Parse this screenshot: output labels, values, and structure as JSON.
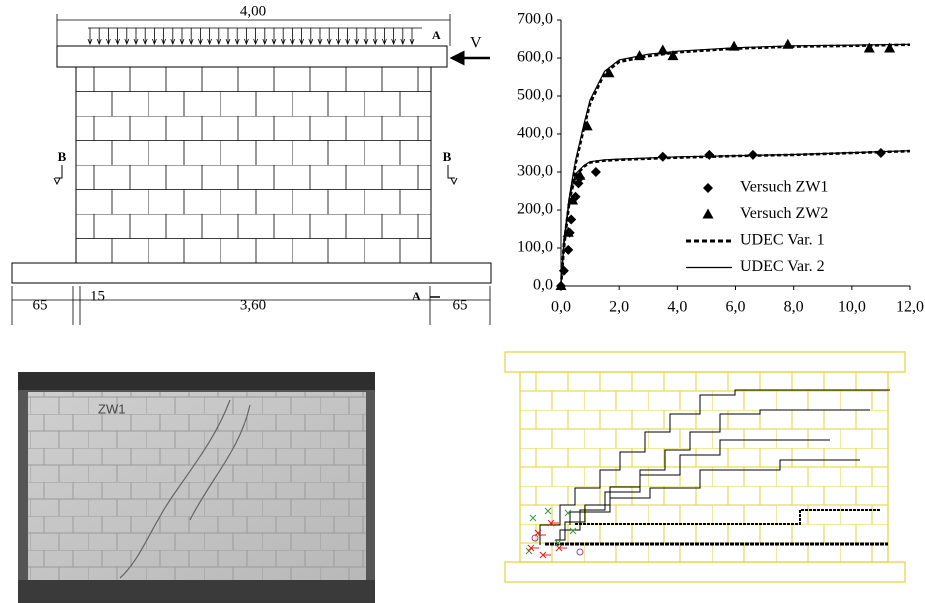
{
  "drawing": {
    "top_dim": "4,00",
    "section_a_top": "A",
    "load": "V",
    "section_b_left": "B",
    "section_b_right": "B",
    "dim_left": "65",
    "dim_joint": "15",
    "dim_middle": "3,60",
    "section_a_bottom": "A",
    "dim_right": "65"
  },
  "chart_data": {
    "type": "line",
    "xlim": [
      0,
      12
    ],
    "ylim": [
      0,
      700
    ],
    "xticks": [
      {
        "value": 0,
        "label": "0,0"
      },
      {
        "value": 2,
        "label": "2,0"
      },
      {
        "value": 4,
        "label": "4,0"
      },
      {
        "value": 6,
        "label": "6,0"
      },
      {
        "value": 8,
        "label": "8,0"
      },
      {
        "value": 10,
        "label": "10,0"
      },
      {
        "value": 12,
        "label": "12,0"
      }
    ],
    "yticks": [
      {
        "value": 0,
        "label": "0,0"
      },
      {
        "value": 100,
        "label": "100,0"
      },
      {
        "value": 200,
        "label": "200,0"
      },
      {
        "value": 300,
        "label": "300,0"
      },
      {
        "value": 400,
        "label": "400,0"
      },
      {
        "value": 500,
        "label": "500,0"
      },
      {
        "value": 600,
        "label": "600,0"
      },
      {
        "value": 700,
        "label": "700,0"
      }
    ],
    "legend": "lower right",
    "series": [
      {
        "name": "Versuch ZW1",
        "color": "#000000",
        "marker": "diamond",
        "line": "none",
        "x": [
          0,
          0.1,
          0.25,
          0.3,
          0.35,
          0.5,
          0.6,
          0.65,
          1.2,
          3.5,
          5.1,
          6.6,
          11
        ],
        "values": [
          0,
          40,
          95,
          140,
          175,
          235,
          270,
          285,
          300,
          340,
          345,
          345,
          350
        ]
      },
      {
        "name": "Versuch ZW2",
        "color": "#000000",
        "marker": "triangle",
        "line": "none",
        "x": [
          0,
          0.25,
          0.4,
          0.65,
          0.9,
          1.65,
          2.7,
          3.5,
          3.85,
          5.95,
          7.8,
          10.6,
          11.3
        ],
        "values": [
          0,
          140,
          225,
          290,
          420,
          560,
          605,
          620,
          605,
          630,
          635,
          625,
          625
        ]
      },
      {
        "name": "UDEC Var. 1",
        "color": "#000000",
        "marker": "none",
        "line": "dashed",
        "x": [
          0,
          0.1,
          0.3,
          0.5,
          0.8,
          1.0,
          1.5,
          2,
          3,
          4,
          6,
          8,
          10,
          12,
          null,
          0,
          0.1,
          0.3,
          0.5,
          0.8,
          1.0,
          1.5,
          2,
          4,
          6,
          8,
          10,
          12
        ],
        "values": [
          0,
          110,
          230,
          320,
          420,
          480,
          560,
          590,
          605,
          615,
          625,
          630,
          632,
          635,
          null,
          0,
          100,
          230,
          290,
          315,
          325,
          330,
          332,
          338,
          342,
          345,
          350,
          355
        ]
      },
      {
        "name": "UDEC Var. 2",
        "color": "#000000",
        "marker": "none",
        "line": "solid",
        "x": [
          0,
          0.1,
          0.3,
          0.5,
          0.8,
          1.0,
          1.5,
          2,
          3,
          4,
          6,
          8,
          10,
          12,
          null,
          0,
          0.1,
          0.3,
          0.5,
          0.8,
          1.0,
          1.5,
          2,
          4,
          6,
          8,
          10,
          12
        ],
        "values": [
          0,
          120,
          240,
          330,
          430,
          490,
          565,
          595,
          610,
          618,
          627,
          632,
          634,
          636,
          null,
          0,
          105,
          235,
          295,
          318,
          327,
          332,
          334,
          340,
          343,
          346,
          351,
          356
        ]
      }
    ]
  },
  "photo": {
    "label": "ZW1"
  }
}
